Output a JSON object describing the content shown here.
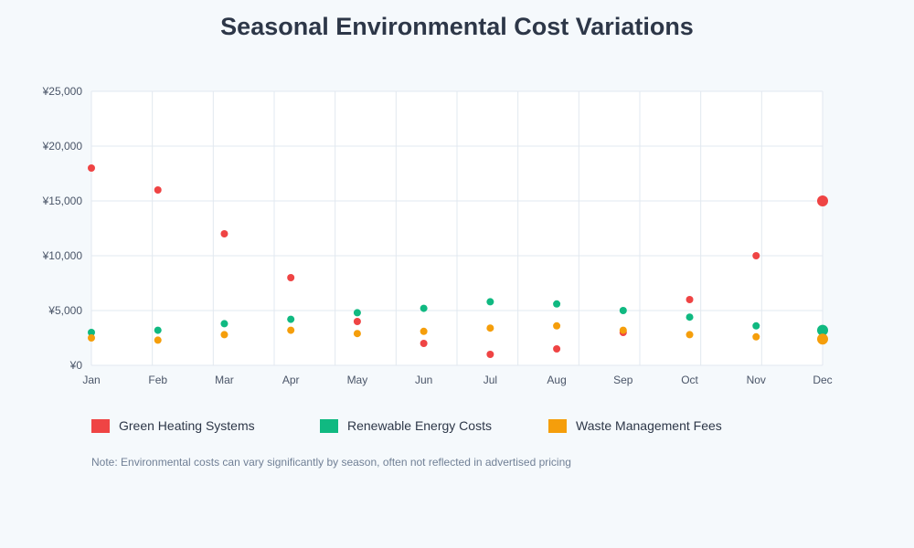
{
  "chart_data": {
    "type": "scatter",
    "title": "Seasonal Environmental Cost Variations",
    "categories": [
      "Jan",
      "Feb",
      "Mar",
      "Apr",
      "May",
      "Jun",
      "Jul",
      "Aug",
      "Sep",
      "Oct",
      "Nov",
      "Dec"
    ],
    "ylim": [
      0,
      25000
    ],
    "yticks": [
      "¥0",
      "¥5,000",
      "¥10,000",
      "¥15,000",
      "¥20,000",
      "¥25,000"
    ],
    "grid": true,
    "legend_position": "bottom",
    "series": [
      {
        "name": "Green Heating Systems",
        "color": "#ef4444",
        "values": [
          18000,
          16000,
          12000,
          8000,
          4000,
          2000,
          1000,
          1500,
          3000,
          6000,
          10000,
          15000
        ]
      },
      {
        "name": "Renewable Energy Costs",
        "color": "#10b981",
        "values": [
          3000,
          3200,
          3800,
          4200,
          4800,
          5200,
          5800,
          5600,
          5000,
          4400,
          3600,
          3200
        ]
      },
      {
        "name": "Waste Management Fees",
        "color": "#f59e0b",
        "values": [
          2500,
          2300,
          2800,
          3200,
          2900,
          3100,
          3400,
          3600,
          3200,
          2800,
          2600,
          2400
        ]
      }
    ]
  },
  "note": "Note: Environmental costs can vary significantly by season, often not reflected in advertised pricing"
}
